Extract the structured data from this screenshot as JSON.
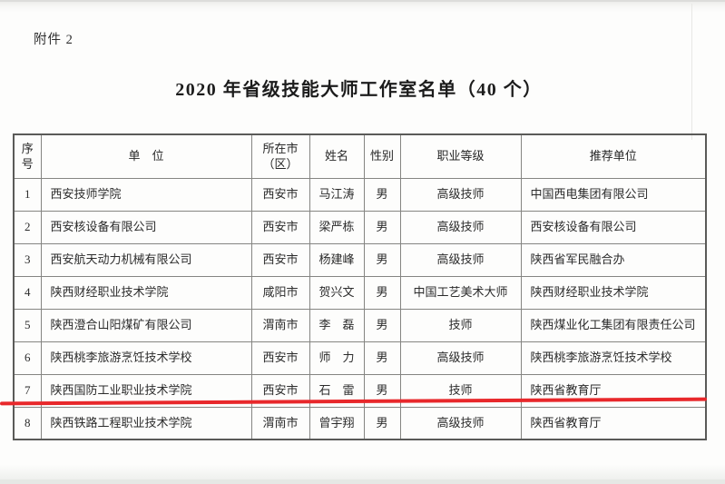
{
  "page": {
    "attachment_label": "附件 2",
    "title": "2020 年省级技能大师工作室名单（40 个）"
  },
  "table": {
    "headers": [
      {
        "id": "seq",
        "label": "序号"
      },
      {
        "id": "unit",
        "label": "单　位"
      },
      {
        "id": "city",
        "label": "所在市（区）"
      },
      {
        "id": "name",
        "label": "姓名"
      },
      {
        "id": "gender",
        "label": "性别"
      },
      {
        "id": "level",
        "label": "职业等级"
      },
      {
        "id": "recommender",
        "label": "推荐单位"
      }
    ],
    "rows": [
      {
        "seq": "1",
        "unit": "西安技师学院",
        "city": "西安市",
        "name": "马江涛",
        "gender": "男",
        "level": "高级技师",
        "recommender": "中国西电集团有限公司"
      },
      {
        "seq": "2",
        "unit": "西安核设备有限公司",
        "city": "西安市",
        "name": "梁严栋",
        "gender": "男",
        "level": "高级技师",
        "recommender": "西安核设备有限公司"
      },
      {
        "seq": "3",
        "unit": "西安航天动力机械有限公司",
        "city": "西安市",
        "name": "杨建峰",
        "gender": "男",
        "level": "高级技师",
        "recommender": "陕西省军民融合办"
      },
      {
        "seq": "4",
        "unit": "陕西财经职业技术学院",
        "city": "咸阳市",
        "name": "贺兴文",
        "gender": "男",
        "level": "中国工艺美术大师",
        "recommender": "陕西财经职业技术学院"
      },
      {
        "seq": "5",
        "unit": "陕西澄合山阳煤矿有限公司",
        "city": "渭南市",
        "name": "李　磊",
        "gender": "男",
        "level": "技师",
        "recommender": "陕西煤业化工集团有限责任公司"
      },
      {
        "seq": "6",
        "unit": "陕西桃李旅游烹饪技术学校",
        "city": "西安市",
        "name": "师　力",
        "gender": "男",
        "level": "高级技师",
        "recommender": "陕西桃李旅游烹饪技术学校"
      },
      {
        "seq": "7",
        "unit": "陕西国防工业职业技术学院",
        "city": "西安市",
        "name": "石　雷",
        "gender": "男",
        "level": "技师",
        "recommender": "陕西省教育厅"
      },
      {
        "seq": "8",
        "unit": "陕西铁路工程职业技术学院",
        "city": "渭南市",
        "name": "曾宇翔",
        "gender": "男",
        "level": "高级技师",
        "recommender": "陕西省教育厅"
      }
    ]
  },
  "annotations": {
    "red_underline_after_row": "7",
    "red_line_color": "#e8282b"
  }
}
